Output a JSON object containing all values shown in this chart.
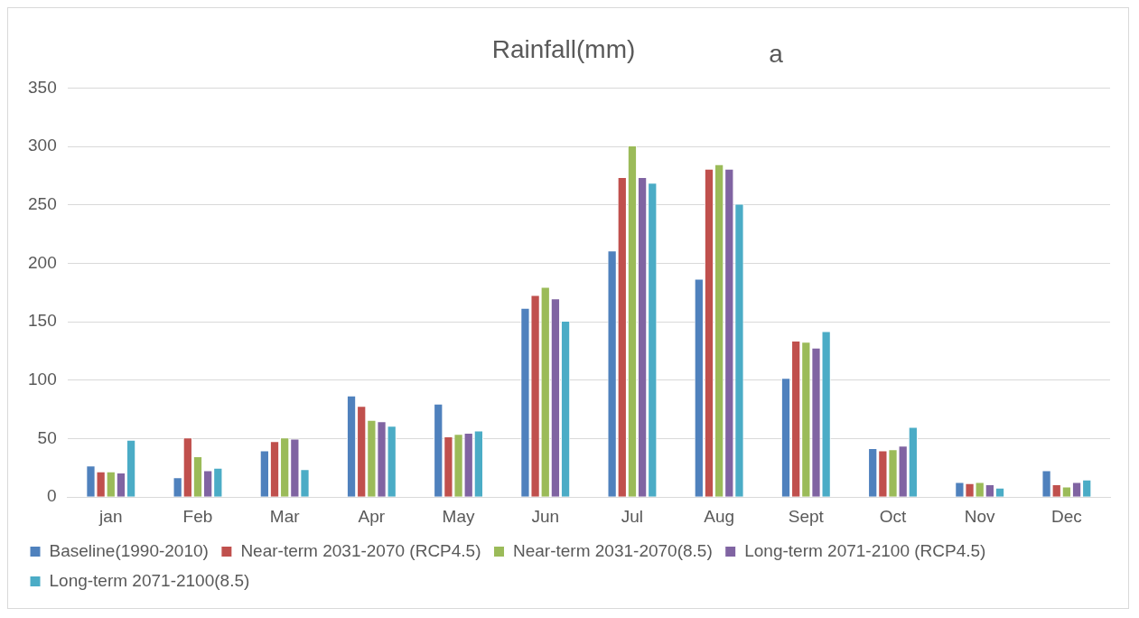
{
  "chart_data": {
    "type": "bar",
    "title": "Rainfall(mm)",
    "annotations": [
      "a"
    ],
    "categories": [
      "jan",
      "Feb",
      "Mar",
      "Apr",
      "May",
      "Jun",
      "Jul",
      "Aug",
      "Sept",
      "Oct",
      "Nov",
      "Dec"
    ],
    "series": [
      {
        "name": "Baseline(1990-2010)",
        "color": "#4f81bd",
        "values": [
          27,
          17,
          40,
          87,
          80,
          162,
          211,
          187,
          102,
          42,
          13,
          23
        ]
      },
      {
        "name": "Near-term 2031-2070 (RCP4.5)",
        "color": "#c0504d",
        "values": [
          22,
          51,
          48,
          78,
          52,
          173,
          274,
          281,
          134,
          40,
          12,
          11
        ]
      },
      {
        "name": "Near-term 2031-2070(8.5)",
        "color": "#9bbb59",
        "values": [
          22,
          35,
          51,
          66,
          54,
          180,
          301,
          285,
          133,
          41,
          13,
          9
        ]
      },
      {
        "name": "Long-term 2071-2100 (RCP4.5)",
        "color": "#8064a2",
        "values": [
          21,
          23,
          50,
          65,
          55,
          170,
          274,
          281,
          128,
          44,
          11,
          13
        ]
      },
      {
        "name": "Long-term 2071-2100(8.5)",
        "color": "#4bacc6",
        "values": [
          49,
          25,
          24,
          61,
          57,
          151,
          269,
          251,
          142,
          60,
          8,
          15
        ]
      }
    ],
    "ylim": [
      0,
      350
    ],
    "yticks": [
      0,
      50,
      100,
      150,
      200,
      250,
      300,
      350
    ],
    "grid": "y",
    "legend": "bottom"
  }
}
